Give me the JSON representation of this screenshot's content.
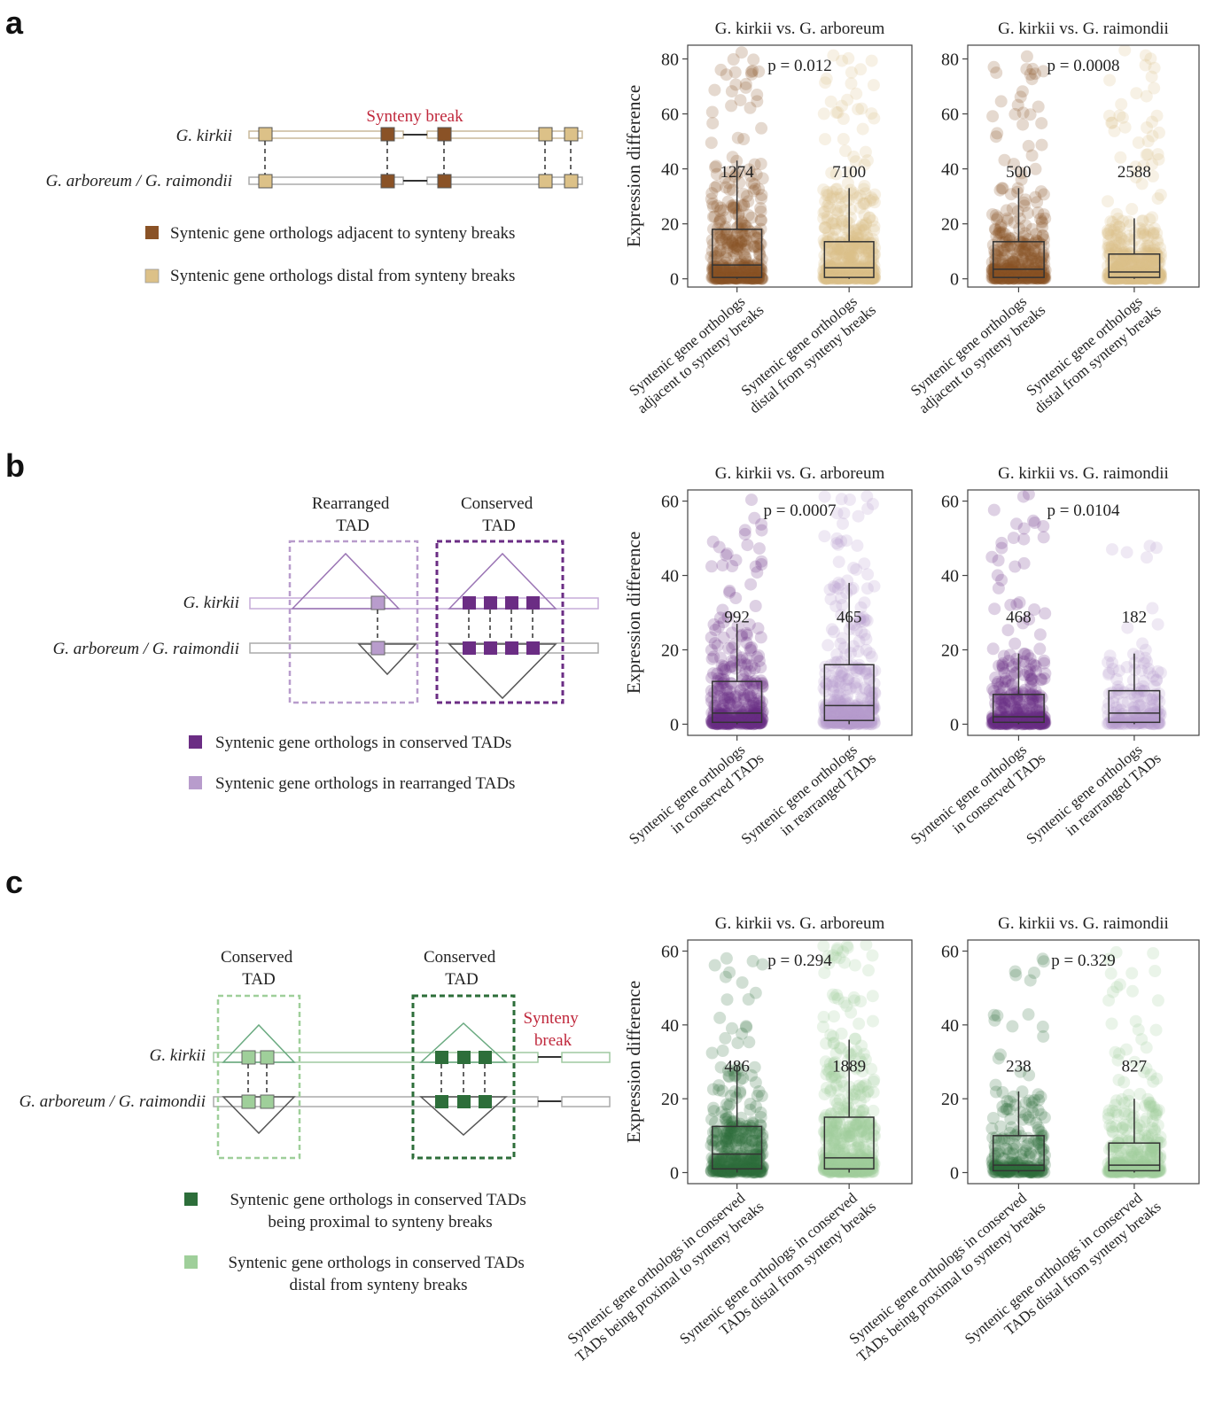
{
  "panels": [
    {
      "letter": "a",
      "colors": {
        "adjacent": "#8a5226",
        "distal": "#dcc188"
      },
      "diagram": {
        "species_top": "G. kirkii",
        "species_bottom": "G. arboreum / G. raimondii",
        "break_label": "Synteny break"
      },
      "legend": [
        {
          "text": "Syntenic gene orthologs adjacent to synteny breaks",
          "color": "#8a5226"
        },
        {
          "text": "Syntenic gene orthologs distal from synteny breaks",
          "color": "#dcc188"
        }
      ]
    },
    {
      "letter": "b",
      "colors": {
        "conserved": "#6b2d84",
        "rearranged": "#b89ccc"
      },
      "diagram": {
        "species_top": "G. kirkii",
        "species_bottom": "G. arboreum / G. raimondii",
        "rearranged_title": [
          "Rearranged",
          "TAD"
        ],
        "conserved_title": [
          "Conserved",
          "TAD"
        ]
      },
      "legend": [
        {
          "text": "Syntenic gene orthologs in conserved TADs",
          "color": "#6b2d84"
        },
        {
          "text": "Syntenic gene orthologs in rearranged TADs",
          "color": "#b89ccc"
        }
      ]
    },
    {
      "letter": "c",
      "colors": {
        "proximal": "#2d6e3a",
        "distal": "#9fcf9a"
      },
      "diagram": {
        "species_top": "G. kirkii",
        "species_bottom": "G. arboreum / G. raimondii",
        "tad1_title": [
          "Conserved",
          "TAD"
        ],
        "tad2_title": [
          "Conserved",
          "TAD"
        ],
        "break_label": [
          "Synteny",
          "break"
        ]
      },
      "legend": [
        {
          "text": [
            "Syntenic gene orthologs in conserved TADs",
            "being proximal to synteny breaks"
          ],
          "color": "#2d6e3a"
        },
        {
          "text": [
            "Syntenic gene orthologs in conserved TADs",
            "distal from synteny breaks"
          ],
          "color": "#9fcf9a"
        }
      ]
    }
  ],
  "chart_data": [
    {
      "type": "box",
      "panel": "a",
      "title": "G. kirkii vs. G. arboreum",
      "ylabel": "Expression difference",
      "ylim": [
        -3,
        85
      ],
      "yticks": [
        0,
        20,
        40,
        60,
        80
      ],
      "annotation": "p = 0.012",
      "categories": [
        [
          "Syntenic gene orthologs",
          "adjacent to synteny breaks"
        ],
        [
          "Syntenic gene orthologs",
          "distal from synteny breaks"
        ]
      ],
      "series": [
        {
          "n": "1274",
          "q1": 0.5,
          "median": 5,
          "q3": 18,
          "whisker_low": 0,
          "whisker_high": 43,
          "color": "#8a5226"
        },
        {
          "n": "7100",
          "q1": 0.5,
          "median": 4,
          "q3": 13.5,
          "whisker_low": 0,
          "whisker_high": 33,
          "color": "#dcc188"
        }
      ]
    },
    {
      "type": "box",
      "panel": "a",
      "title": "G. kirkii vs. G. raimondii",
      "ylabel": "",
      "ylim": [
        -3,
        85
      ],
      "yticks": [
        0,
        20,
        40,
        60,
        80
      ],
      "annotation": "p = 0.0008",
      "categories": [
        [
          "Syntenic gene orthologs",
          "adjacent to synteny breaks"
        ],
        [
          "Syntenic gene orthologs",
          "distal from synteny breaks"
        ]
      ],
      "series": [
        {
          "n": "500",
          "q1": 0.5,
          "median": 3.5,
          "q3": 13.5,
          "whisker_low": 0,
          "whisker_high": 33,
          "color": "#8a5226"
        },
        {
          "n": "2588",
          "q1": 0.5,
          "median": 2.5,
          "q3": 9,
          "whisker_low": 0,
          "whisker_high": 22,
          "color": "#dcc188"
        }
      ]
    },
    {
      "type": "box",
      "panel": "b",
      "title": "G. kirkii vs. G. arboreum",
      "ylabel": "Expression difference",
      "ylim": [
        -3,
        63
      ],
      "yticks": [
        0,
        20,
        40,
        60
      ],
      "annotation": "p = 0.0007",
      "categories": [
        [
          "Syntenic gene orthologs",
          "in conserved TADs"
        ],
        [
          "Syntenic gene orthologs",
          "in rearranged TADs"
        ]
      ],
      "series": [
        {
          "n": "992",
          "q1": 0.5,
          "median": 3,
          "q3": 11.5,
          "whisker_low": 0,
          "whisker_high": 27,
          "color": "#6b2d84"
        },
        {
          "n": "465",
          "q1": 1,
          "median": 5,
          "q3": 16,
          "whisker_low": 0,
          "whisker_high": 38,
          "color": "#b89ccc"
        }
      ]
    },
    {
      "type": "box",
      "panel": "b",
      "title": "G. kirkii vs. G. raimondii",
      "ylabel": "",
      "ylim": [
        -3,
        63
      ],
      "yticks": [
        0,
        20,
        40,
        60
      ],
      "annotation": "p = 0.0104",
      "categories": [
        [
          "Syntenic gene orthologs",
          "in conserved TADs"
        ],
        [
          "Syntenic gene orthologs",
          "in rearranged TADs"
        ]
      ],
      "series": [
        {
          "n": "468",
          "q1": 0.5,
          "median": 2,
          "q3": 8,
          "whisker_low": 0,
          "whisker_high": 19,
          "color": "#6b2d84"
        },
        {
          "n": "182",
          "q1": 0.5,
          "median": 3,
          "q3": 9,
          "whisker_low": 0,
          "whisker_high": 19,
          "color": "#b89ccc"
        }
      ]
    },
    {
      "type": "box",
      "panel": "c",
      "title": "G. kirkii vs. G. arboreum",
      "ylabel": "Expression difference",
      "ylim": [
        -3,
        63
      ],
      "yticks": [
        0,
        20,
        40,
        60
      ],
      "annotation": "p = 0.294",
      "categories": [
        [
          "Syntenic gene orthologs in conserved",
          "TADs being proximal to synteny breaks"
        ],
        [
          "Syntenic gene orthologs in conserved",
          "TADs distal from synteny breaks"
        ]
      ],
      "series": [
        {
          "n": "486",
          "q1": 1,
          "median": 5,
          "q3": 12.5,
          "whisker_low": 0,
          "whisker_high": 29,
          "color": "#2d6e3a"
        },
        {
          "n": "1889",
          "q1": 1,
          "median": 4,
          "q3": 15,
          "whisker_low": 0,
          "whisker_high": 36,
          "color": "#9fcf9a"
        }
      ]
    },
    {
      "type": "box",
      "panel": "c",
      "title": "G. kirkii vs. G. raimondii",
      "ylabel": "",
      "ylim": [
        -3,
        63
      ],
      "yticks": [
        0,
        20,
        40,
        60
      ],
      "annotation": "p = 0.329",
      "categories": [
        [
          "Syntenic gene orthologs in conserved",
          "TADs being proximal to synteny breaks"
        ],
        [
          "Syntenic gene orthologs in conserved",
          "TADs distal from synteny breaks"
        ]
      ],
      "series": [
        {
          "n": "238",
          "q1": 0.5,
          "median": 2,
          "q3": 10,
          "whisker_low": 0,
          "whisker_high": 22,
          "color": "#2d6e3a"
        },
        {
          "n": "827",
          "q1": 0.5,
          "median": 2,
          "q3": 8,
          "whisker_low": 0,
          "whisker_high": 20,
          "color": "#9fcf9a"
        }
      ]
    }
  ]
}
